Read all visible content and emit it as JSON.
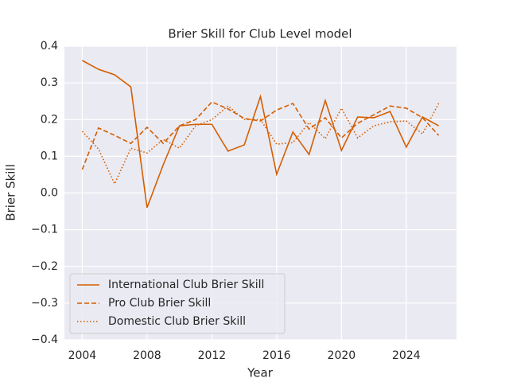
{
  "chart_data": {
    "type": "line",
    "title": "Brier Skill for Club Level model",
    "x_label": "Year",
    "y_label": "Brier Skill",
    "x": [
      2004,
      2005,
      2006,
      2007,
      2008,
      2009,
      2010,
      2011,
      2012,
      2013,
      2014,
      2015,
      2016,
      2017,
      2018,
      2019,
      2020,
      2021,
      2022,
      2023,
      2024,
      2025,
      2026
    ],
    "series": [
      {
        "name": "International Club Brier Skill",
        "color": "#d55e00",
        "linestyle": "solid",
        "values": [
          0.361,
          0.337,
          0.322,
          0.289,
          -0.04,
          0.077,
          0.183,
          0.187,
          0.187,
          0.114,
          0.131,
          0.263,
          0.051,
          0.166,
          0.105,
          0.252,
          0.116,
          0.207,
          0.205,
          0.222,
          0.125,
          0.207,
          0.183
        ]
      },
      {
        "name": "Pro Club Brier Skill",
        "color": "#d55e00",
        "linestyle": "dashed",
        "values": [
          0.064,
          0.177,
          0.157,
          0.135,
          0.179,
          0.135,
          0.183,
          0.2,
          0.248,
          0.229,
          0.203,
          0.196,
          0.226,
          0.244,
          0.174,
          0.205,
          0.15,
          0.19,
          0.213,
          0.237,
          0.231,
          0.205,
          0.157
        ]
      },
      {
        "name": "Domestic Club Brier Skill",
        "color": "#d55e00",
        "linestyle": "dotted",
        "values": [
          0.168,
          0.12,
          0.025,
          0.122,
          0.109,
          0.146,
          0.122,
          0.183,
          0.2,
          0.237,
          0.2,
          0.2,
          0.133,
          0.137,
          0.192,
          0.148,
          0.231,
          0.15,
          0.183,
          0.194,
          0.196,
          0.161,
          0.244
        ]
      }
    ],
    "xlim": [
      2002.9,
      2027.1
    ],
    "ylim": [
      -0.4,
      0.4
    ],
    "xticks": [
      2004,
      2008,
      2012,
      2016,
      2020,
      2024
    ],
    "yticks": [
      {
        "value": -0.4,
        "label": "−0.4"
      },
      {
        "value": -0.3,
        "label": "−0.3"
      },
      {
        "value": -0.2,
        "label": "−0.2"
      },
      {
        "value": -0.1,
        "label": "−0.1"
      },
      {
        "value": 0,
        "label": "0.0"
      },
      0.1,
      0.2,
      0.3,
      0.4
    ],
    "grid": true,
    "legend_position": "lower-left"
  }
}
